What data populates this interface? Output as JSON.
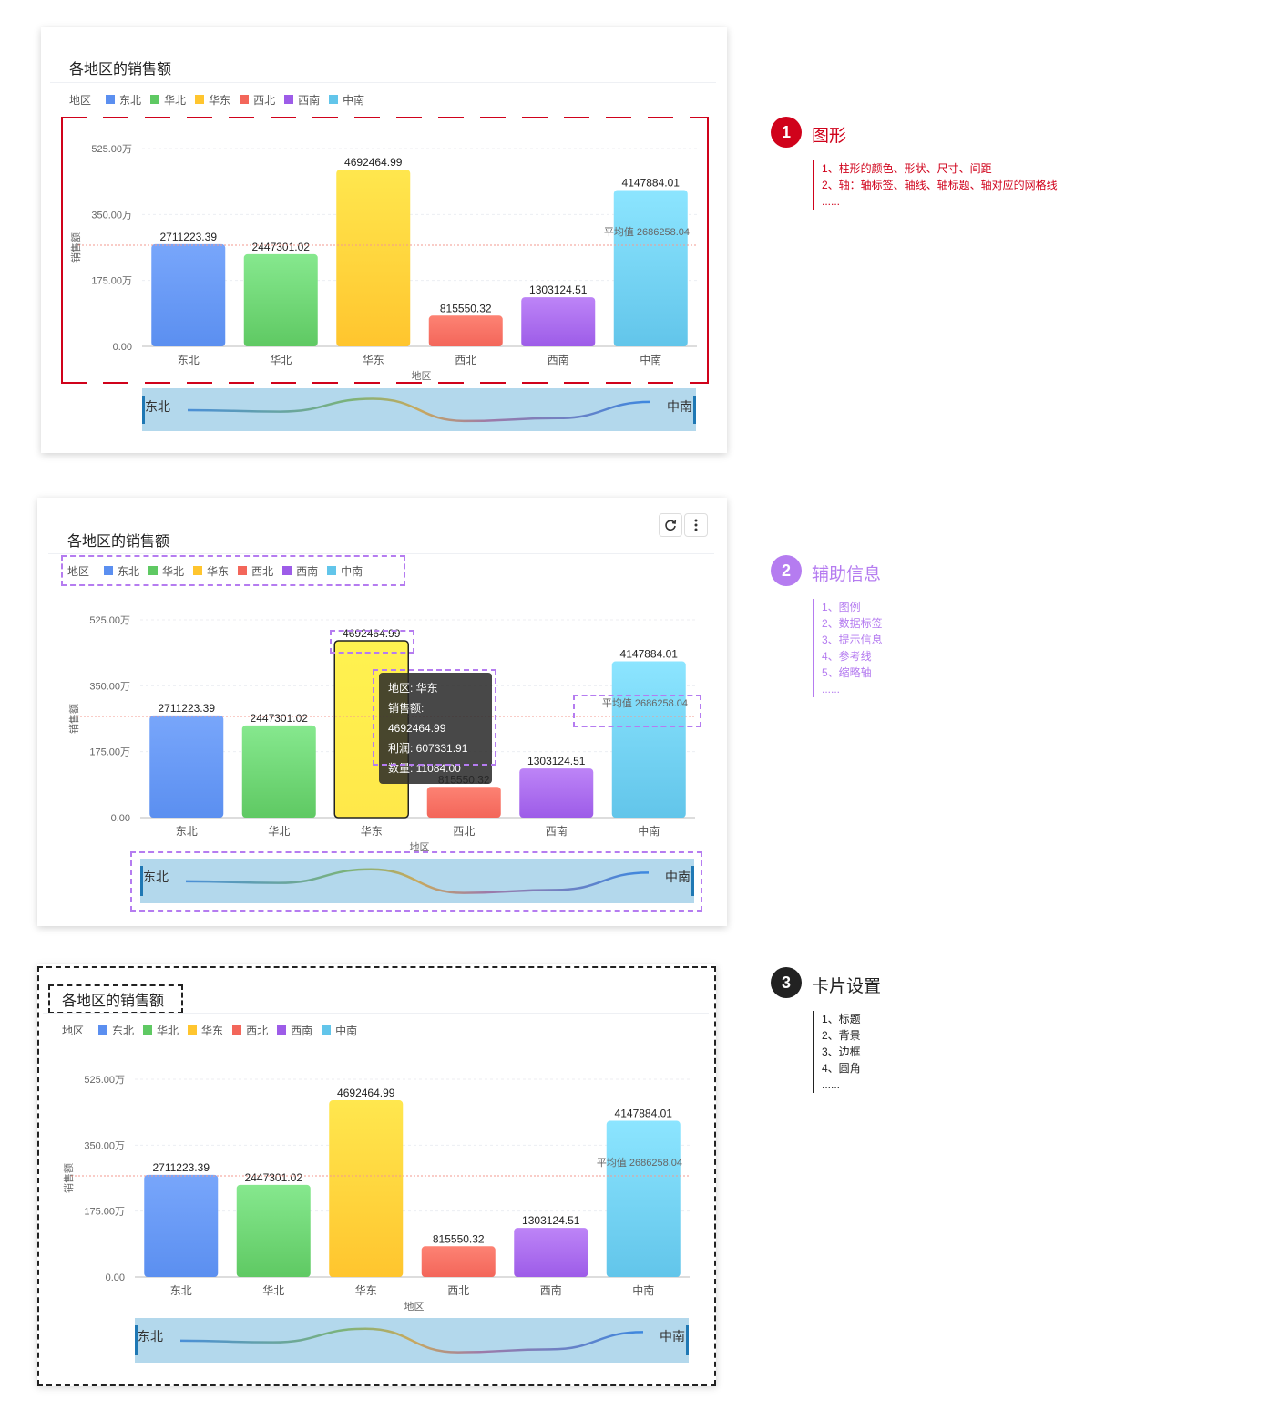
{
  "chart_data": [
    {
      "type": "bar",
      "title": "各地区的销售额",
      "legend_title": "地区",
      "categories": [
        "东北",
        "华北",
        "华东",
        "西北",
        "西南",
        "中南"
      ],
      "series": [
        {
          "name": "销售额",
          "values": [
            2711223.39,
            2447301.02,
            4692464.99,
            815550.32,
            1303124.51,
            4147884.01
          ]
        }
      ],
      "data_labels": [
        "2711223.39",
        "2447301.02",
        "4692464.99",
        "815550.32",
        "1303124.51",
        "4147884.01"
      ],
      "xlabel": "地区",
      "ylabel": "销售额",
      "ylim": [
        0,
        5250000
      ],
      "yticks": [
        "0.00",
        "175.00万",
        "350.00万",
        "525.00万"
      ],
      "average_line": {
        "label": "平均值",
        "value": 2686258.04,
        "value_label": "2686258.04"
      },
      "legend_position": "top-left",
      "grid": true,
      "slider": {
        "start_label": "东北",
        "end_label": "中南"
      }
    }
  ],
  "colors": {
    "东北": [
      "#78a6fb",
      "#5b8ff0"
    ],
    "华北": [
      "#86e88e",
      "#5fc963"
    ],
    "华东": [
      "#ffe74e",
      "#ffc52e"
    ],
    "西北": [
      "#fd8273",
      "#f3665a"
    ],
    "西南": [
      "#bd84f7",
      "#9d5ce8"
    ],
    "中南": [
      "#8ce5ff",
      "#62c5ea"
    ],
    "red_accent": "#d0021b",
    "purple_accent": "#b57cf0",
    "dark_accent": "#222222"
  },
  "legend_colors": [
    "#5b8ff0",
    "#5fc963",
    "#ffc52e",
    "#f3665a",
    "#9d5ce8",
    "#62c5ea"
  ],
  "tooltip": {
    "line1": "地区: 华东",
    "line2": "销售额: 4692464.99",
    "line3": "利润: 607331.91",
    "line4": "数量: 11084.00"
  },
  "toolbar": {
    "refresh_icon": "refresh-icon",
    "more_icon": "more-vertical-icon"
  },
  "annotations": [
    {
      "number": "1",
      "title": "图形",
      "color": "#d0021b",
      "items": [
        "1、柱形的颜色、形状、尺寸、间距",
        "2、轴：轴标签、轴线、轴标题、轴对应的网格线",
        "......"
      ]
    },
    {
      "number": "2",
      "title": "辅助信息",
      "color": "#b57cf0",
      "items": [
        "1、图例",
        "2、数据标签",
        "3、提示信息",
        "4、参考线",
        "5、缩略轴",
        "......"
      ]
    },
    {
      "number": "3",
      "title": "卡片设置",
      "color": "#222222",
      "items": [
        "1、标题",
        "2、背景",
        "3、边框",
        "4、圆角",
        "......"
      ]
    }
  ]
}
